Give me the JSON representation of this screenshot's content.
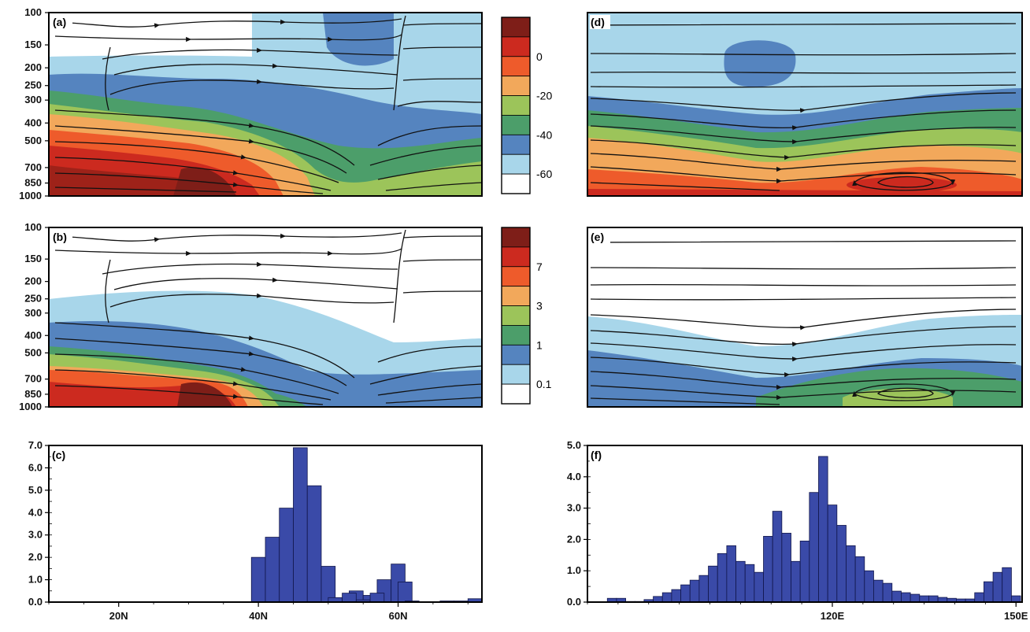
{
  "panel_labels": [
    "(a)",
    "(b)",
    "(c)",
    "(d)",
    "(e)",
    "(f)"
  ],
  "pressure_levels": [
    "100",
    "150",
    "200",
    "250",
    "300",
    "400",
    "500",
    "700",
    "850",
    "1000"
  ],
  "colorbar_top": {
    "labels": [
      "0",
      "-20",
      "-40",
      "-60"
    ],
    "colors": [
      "#7e1e18",
      "#cc2a1f",
      "#ee5b2b",
      "#f2a85b",
      "#9cc45a",
      "#4c9e6a",
      "#5584bf",
      "#a8d6ea",
      "#ffffff"
    ]
  },
  "colorbar_mid": {
    "labels": [
      "7",
      "3",
      "1",
      "0.1"
    ],
    "colors": [
      "#7e1e18",
      "#cc2a1f",
      "#ee5b2b",
      "#f2a85b",
      "#9cc45a",
      "#4c9e6a",
      "#5584bf",
      "#a8d6ea",
      "#ffffff"
    ]
  },
  "chart_data": [
    {
      "type": "heatmap",
      "panel": "(a)",
      "xlabel": "",
      "ylabel": "",
      "y_ticks": [
        "100",
        "150",
        "200",
        "250",
        "300",
        "400",
        "500",
        "700",
        "850",
        "1000"
      ]
    },
    {
      "type": "heatmap",
      "panel": "(b)",
      "xlabel": "",
      "ylabel": "",
      "y_ticks": [
        "100",
        "150",
        "200",
        "250",
        "300",
        "400",
        "500",
        "700",
        "850",
        "1000"
      ]
    },
    {
      "type": "bar",
      "panel": "(c)",
      "x_ticks": [
        "20N",
        "40N",
        "60N"
      ],
      "y_ticks": [
        "0.0",
        "1.0",
        "2.0",
        "3.0",
        "4.0",
        "5.0",
        "6.0",
        "7.0"
      ],
      "xlim": [
        10,
        72
      ],
      "ylim": [
        0,
        7
      ],
      "x": [
        40,
        42,
        44,
        46,
        48,
        50,
        52,
        54,
        56,
        58,
        60
      ],
      "values": [
        2.0,
        2.9,
        4.2,
        6.9,
        5.2,
        1.6,
        0.1,
        0.5,
        0.3,
        1.0,
        1.7
      ],
      "extra_bars": [
        {
          "x": 61,
          "value": 0.9
        },
        {
          "x": 51,
          "value": 0.2
        },
        {
          "x": 53,
          "value": 0.4
        },
        {
          "x": 55,
          "value": 0.1
        },
        {
          "x": 57,
          "value": 0.4
        },
        {
          "x": 62,
          "value": 0.05
        },
        {
          "x": 67,
          "value": 0.05
        },
        {
          "x": 69,
          "value": 0.05
        },
        {
          "x": 71,
          "value": 0.15
        }
      ]
    },
    {
      "type": "heatmap",
      "panel": "(d)",
      "xlabel": "",
      "ylabel": ""
    },
    {
      "type": "heatmap",
      "panel": "(e)",
      "xlabel": "",
      "ylabel": ""
    },
    {
      "type": "bar",
      "panel": "(f)",
      "x_ticks": [
        "120E",
        "150E"
      ],
      "y_ticks": [
        "0.0",
        "1.0",
        "2.0",
        "3.0",
        "4.0",
        "5.0"
      ],
      "xlim": [
        80,
        151
      ],
      "ylim": [
        0,
        5
      ],
      "x": [
        84,
        85.5,
        87,
        88.5,
        90,
        91.5,
        93,
        94.5,
        96,
        97.5,
        99,
        100.5,
        102,
        103.5,
        105,
        106.5,
        108,
        109.5,
        111,
        112.5,
        114,
        115.5,
        117,
        118.5,
        120,
        121.5,
        123,
        124.5,
        126,
        127.5,
        129,
        130.5,
        132,
        133.5,
        135,
        136.5,
        138,
        139.5,
        141,
        142.5,
        144,
        145.5,
        147,
        148.5,
        150
      ],
      "values": [
        0.12,
        0.12,
        0.02,
        0.02,
        0.08,
        0.18,
        0.3,
        0.4,
        0.55,
        0.7,
        0.85,
        1.15,
        1.55,
        1.8,
        1.3,
        1.2,
        0.95,
        2.1,
        2.9,
        2.2,
        1.3,
        1.95,
        3.5,
        4.65,
        3.1,
        2.45,
        1.8,
        1.45,
        1.0,
        0.7,
        0.6,
        0.35,
        0.3,
        0.25,
        0.2,
        0.2,
        0.15,
        0.12,
        0.1,
        0.1,
        0.3,
        0.65,
        0.95,
        1.1,
        0.2
      ]
    }
  ]
}
